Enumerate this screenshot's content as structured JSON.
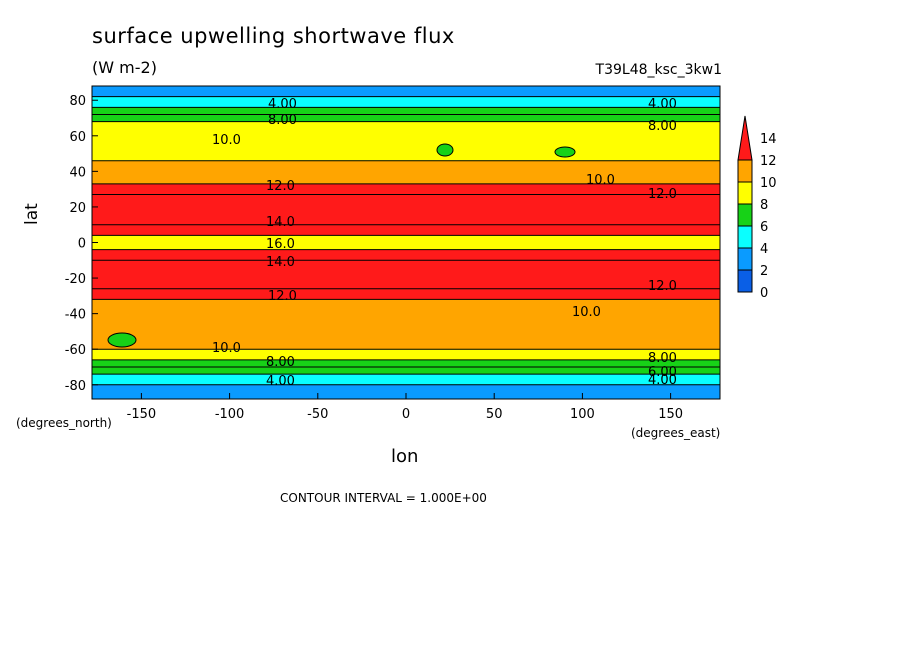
{
  "chart_data": {
    "type": "heatmap",
    "title": "surface upwelling shortwave flux",
    "units": "(W m-2)",
    "run_label": "T39L48_ksc_3kw1",
    "xlabel": "lon",
    "ylabel": "lat",
    "x_units_label": "(degrees_east)",
    "y_units_label": "(degrees_north)",
    "xlim": [
      -178,
      178
    ],
    "ylim": [
      -88,
      88
    ],
    "x_ticks": [
      -150,
      -100,
      -50,
      0,
      50,
      100,
      150
    ],
    "y_ticks": [
      -80,
      -60,
      -40,
      -20,
      0,
      20,
      40,
      60,
      80
    ],
    "contour_interval_text": "CONTOUR INTERVAL = 1.000E+00",
    "colorbar": {
      "ticks": [
        0,
        2,
        4,
        6,
        8,
        10,
        12,
        14
      ],
      "colors": [
        "#0a5fe6",
        "#0a9bff",
        "#0affff",
        "#17d217",
        "#ffff00",
        "#ffa500",
        "#ff1a1a"
      ]
    },
    "zonal_bands": [
      {
        "lat": [
          82,
          88
        ],
        "value": 3
      },
      {
        "lat": [
          76,
          82
        ],
        "value": 4.5
      },
      {
        "lat": [
          72,
          76
        ],
        "value": 6
      },
      {
        "lat": [
          68,
          72
        ],
        "value": 7.5
      },
      {
        "lat": [
          46,
          68
        ],
        "value": 9
      },
      {
        "lat": [
          33,
          46
        ],
        "value": 11
      },
      {
        "lat": [
          27,
          33
        ],
        "value": 13
      },
      {
        "lat": [
          10,
          27
        ],
        "value": 15
      },
      {
        "lat": [
          4,
          10
        ],
        "value": 13
      },
      {
        "lat": [
          -4,
          4
        ],
        "value": 9
      },
      {
        "lat": [
          -10,
          -4
        ],
        "value": 13
      },
      {
        "lat": [
          -26,
          -10
        ],
        "value": 15
      },
      {
        "lat": [
          -32,
          -26
        ],
        "value": 13
      },
      {
        "lat": [
          -60,
          -32
        ],
        "value": 11
      },
      {
        "lat": [
          -66,
          -60
        ],
        "value": 9
      },
      {
        "lat": [
          -70,
          -66
        ],
        "value": 7.5
      },
      {
        "lat": [
          -74,
          -70
        ],
        "value": 6
      },
      {
        "lat": [
          -80,
          -74
        ],
        "value": 4.5
      },
      {
        "lat": [
          -88,
          -80
        ],
        "value": 3
      }
    ],
    "contour_labels": [
      "4.00",
      "6.00",
      "8.00",
      "10.0",
      "12.0",
      "14.0",
      "16.0"
    ]
  }
}
